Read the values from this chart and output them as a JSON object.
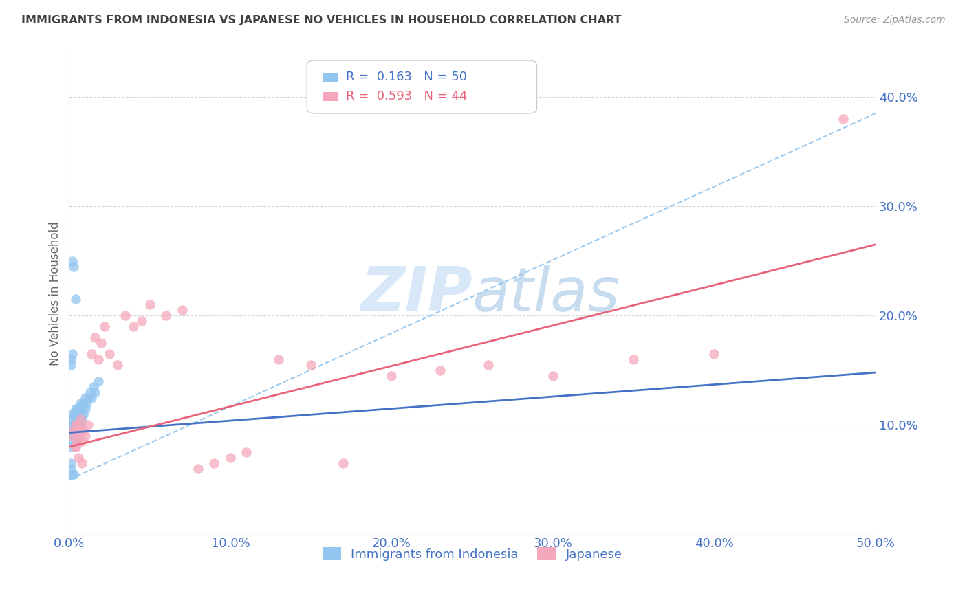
{
  "title": "IMMIGRANTS FROM INDONESIA VS JAPANESE NO VEHICLES IN HOUSEHOLD CORRELATION CHART",
  "source": "Source: ZipAtlas.com",
  "ylabel": "No Vehicles in Household",
  "xmin": 0.0,
  "xmax": 0.5,
  "ymin": 0.0,
  "ymax": 0.44,
  "xticks": [
    0.0,
    0.1,
    0.2,
    0.3,
    0.4,
    0.5
  ],
  "yticks": [
    0.1,
    0.2,
    0.3,
    0.4
  ],
  "ytick_labels": [
    "10.0%",
    "20.0%",
    "30.0%",
    "40.0%"
  ],
  "xtick_labels": [
    "0.0%",
    "10.0%",
    "20.0%",
    "30.0%",
    "40.0%",
    "50.0%"
  ],
  "legend_blue_R": "0.163",
  "legend_blue_N": "50",
  "legend_pink_R": "0.593",
  "legend_pink_N": "44",
  "blue_color": "#92C5F0",
  "pink_color": "#F5A8BC",
  "blue_line_color": "#4472C4",
  "pink_line_color": "#E8637A",
  "axis_tick_color": "#4472C4",
  "title_color": "#404040",
  "watermark_color": "#D8E8F8",
  "blue_scatter_x": [
    0.001,
    0.001,
    0.001,
    0.001,
    0.002,
    0.002,
    0.002,
    0.002,
    0.002,
    0.003,
    0.003,
    0.003,
    0.003,
    0.004,
    0.004,
    0.004,
    0.004,
    0.005,
    0.005,
    0.005,
    0.005,
    0.006,
    0.006,
    0.006,
    0.007,
    0.007,
    0.007,
    0.008,
    0.008,
    0.009,
    0.009,
    0.01,
    0.01,
    0.011,
    0.012,
    0.013,
    0.014,
    0.015,
    0.016,
    0.018,
    0.001,
    0.001,
    0.002,
    0.003,
    0.001,
    0.001,
    0.002,
    0.002,
    0.003,
    0.004
  ],
  "blue_scatter_y": [
    0.08,
    0.09,
    0.095,
    0.1,
    0.085,
    0.095,
    0.1,
    0.105,
    0.11,
    0.09,
    0.095,
    0.1,
    0.11,
    0.085,
    0.095,
    0.1,
    0.115,
    0.09,
    0.1,
    0.105,
    0.115,
    0.095,
    0.105,
    0.115,
    0.1,
    0.11,
    0.12,
    0.105,
    0.115,
    0.11,
    0.12,
    0.115,
    0.125,
    0.12,
    0.125,
    0.13,
    0.125,
    0.135,
    0.13,
    0.14,
    0.06,
    0.065,
    0.055,
    0.055,
    0.155,
    0.16,
    0.165,
    0.25,
    0.245,
    0.215
  ],
  "pink_scatter_x": [
    0.002,
    0.003,
    0.004,
    0.004,
    0.005,
    0.005,
    0.006,
    0.006,
    0.007,
    0.007,
    0.008,
    0.009,
    0.01,
    0.012,
    0.014,
    0.016,
    0.018,
    0.02,
    0.022,
    0.025,
    0.03,
    0.035,
    0.04,
    0.045,
    0.05,
    0.06,
    0.07,
    0.08,
    0.09,
    0.1,
    0.11,
    0.13,
    0.15,
    0.17,
    0.2,
    0.23,
    0.26,
    0.3,
    0.35,
    0.4,
    0.004,
    0.006,
    0.008,
    0.48
  ],
  "pink_scatter_y": [
    0.09,
    0.095,
    0.08,
    0.1,
    0.085,
    0.095,
    0.09,
    0.1,
    0.095,
    0.105,
    0.085,
    0.095,
    0.09,
    0.1,
    0.165,
    0.18,
    0.16,
    0.175,
    0.19,
    0.165,
    0.155,
    0.2,
    0.19,
    0.195,
    0.21,
    0.2,
    0.205,
    0.06,
    0.065,
    0.07,
    0.075,
    0.16,
    0.155,
    0.065,
    0.145,
    0.15,
    0.155,
    0.145,
    0.16,
    0.165,
    0.08,
    0.07,
    0.065,
    0.38
  ],
  "blue_line_y_start": 0.093,
  "blue_line_y_end": 0.148,
  "pink_line_y_start": 0.08,
  "pink_line_y_end": 0.265,
  "dashed_line_y_start": 0.05,
  "dashed_line_y_end": 0.385
}
